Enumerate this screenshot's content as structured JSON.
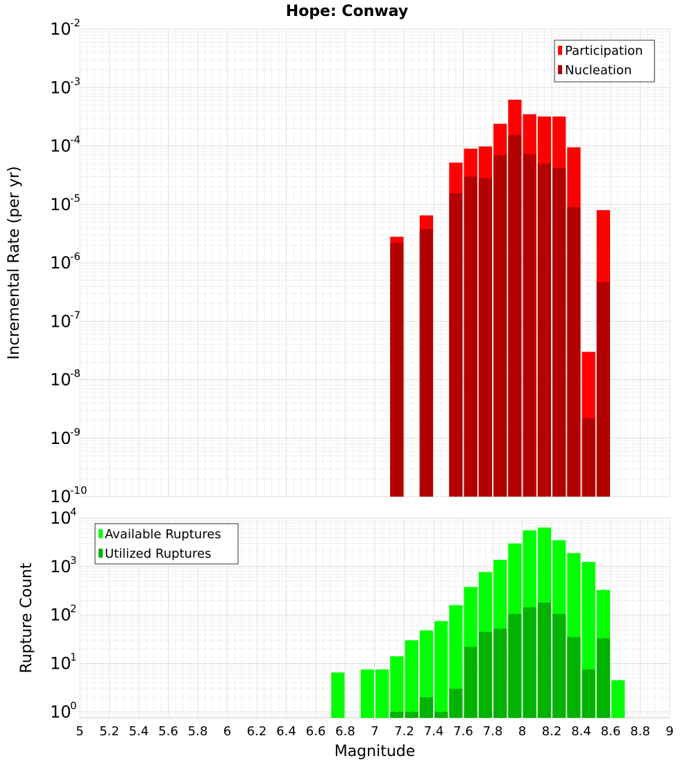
{
  "chart_data": [
    {
      "type": "bar",
      "title": "Hope: Conway",
      "xlabel": "",
      "ylabel": "Incremental Rate (per yr)",
      "yscale": "log",
      "xlim": [
        5,
        9
      ],
      "ylim": [
        1e-10,
        0.01
      ],
      "ytick_exponents": [
        -10,
        -9,
        -8,
        -7,
        -6,
        -5,
        -4,
        -3,
        -2
      ],
      "grid": true,
      "legend_position": "top-right",
      "overlay": true,
      "x": [
        7.05,
        7.15,
        7.25,
        7.35,
        7.45,
        7.55,
        7.65,
        7.75,
        7.85,
        7.95,
        8.05,
        8.15,
        8.25,
        8.35,
        8.45,
        8.55
      ],
      "series": [
        {
          "name": "Participation",
          "color": "#ff0000",
          "values": [
            null,
            2.8e-06,
            null,
            6.5e-06,
            null,
            5.2e-05,
            9e-05,
            9.8e-05,
            0.00024,
            0.00062,
            0.00035,
            0.00032,
            0.00032,
            9.5e-05,
            3e-08,
            8e-06
          ]
        },
        {
          "name": "Nucleation",
          "color": "#b30000",
          "values": [
            null,
            2.2e-06,
            null,
            3.8e-06,
            null,
            1.55e-05,
            3e-05,
            2.8e-05,
            7e-05,
            0.000155,
            7.3e-05,
            5e-05,
            4.2e-05,
            9e-06,
            2.2e-09,
            4.7e-07
          ]
        }
      ]
    },
    {
      "type": "bar",
      "title": "",
      "xlabel": "Magnitude",
      "ylabel": "Rupture Count",
      "yscale": "log",
      "xlim": [
        5,
        9
      ],
      "ylim": [
        0.75,
        10000
      ],
      "ytick_exponents": [
        0,
        1,
        2,
        3,
        4
      ],
      "xticks": [
        "5",
        "5.2",
        "5.4",
        "5.6",
        "5.8",
        "6",
        "6.2",
        "6.4",
        "6.6",
        "6.8",
        "7",
        "7.2",
        "7.4",
        "7.6",
        "7.8",
        "8",
        "8.2",
        "8.4",
        "8.6",
        "8.8",
        "9"
      ],
      "grid": true,
      "legend_position": "top-left",
      "overlay": true,
      "x": [
        6.75,
        6.85,
        6.95,
        7.05,
        7.15,
        7.25,
        7.35,
        7.45,
        7.55,
        7.65,
        7.75,
        7.85,
        7.95,
        8.05,
        8.15,
        8.25,
        8.35,
        8.45,
        8.55,
        8.65
      ],
      "series": [
        {
          "name": "Available Ruptures",
          "color": "#00ff00",
          "values": [
            6.5,
            null,
            7.5,
            7.5,
            14,
            30,
            48,
            75,
            160,
            380,
            770,
            1380,
            3000,
            5600,
            6400,
            3500,
            1900,
            1250,
            330,
            4.5
          ]
        },
        {
          "name": "Utilized Ruptures",
          "color": "#00b300",
          "values": [
            null,
            null,
            null,
            null,
            1,
            1,
            2,
            1,
            3,
            22,
            45,
            52,
            105,
            145,
            180,
            105,
            35,
            7.5,
            33,
            null
          ]
        }
      ]
    }
  ]
}
